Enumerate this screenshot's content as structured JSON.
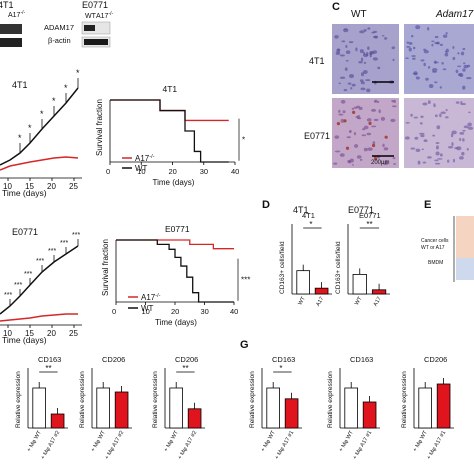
{
  "panel_top": {
    "cell_4t1": "4T1",
    "cell_e0771": "E0771",
    "wb_wt": "WT",
    "wb_a17": "A17",
    "wb_a17_sup": "-/-",
    "wb_adam17": "ADAM17",
    "wb_actin": "β-actin",
    "colors": {
      "wt": "#111111",
      "a17": "#d62728"
    }
  },
  "panel_c": {
    "letter": "C",
    "col_wt": "WT",
    "col_adam17": "Adam17",
    "row_4t1": "4T1",
    "row_e0771": "E0771",
    "scale": "200μm"
  },
  "growth_4t1": {
    "title": "4T1",
    "xlabel": "Time (days)",
    "xticks": [
      "10",
      "15",
      "20",
      "25"
    ],
    "stars": [
      "*",
      "*",
      "*",
      "*",
      "*",
      "*"
    ]
  },
  "growth_e0771": {
    "title": "E0771",
    "xlabel": "Time (days)",
    "xticks": [
      "10",
      "15",
      "20",
      "25"
    ],
    "stars": [
      "***",
      "***",
      "***",
      "***",
      "***",
      "***",
      "***",
      "***"
    ]
  },
  "chart_data": [
    {
      "type": "line",
      "title": "4T1",
      "xlabel": "Time (days)",
      "ylabel": "Survival fraction",
      "xlim": [
        0,
        40
      ],
      "ylim": [
        0,
        1
      ],
      "xticks": [
        "0",
        "10",
        "20",
        "30",
        "40"
      ],
      "series": [
        {
          "name": "A17",
          "color": "#d62728",
          "x": [
            0,
            16,
            16,
            24,
            24,
            38
          ],
          "y": [
            1,
            1,
            0.83,
            0.83,
            0.67,
            0.67
          ]
        },
        {
          "name": "WT",
          "color": "#111111",
          "x": [
            0,
            16,
            16,
            24,
            24,
            27,
            27,
            29,
            29,
            38
          ],
          "y": [
            1,
            1,
            0.83,
            0.83,
            0.5,
            0.5,
            0.17,
            0.17,
            0,
            0
          ]
        }
      ],
      "sig": "*"
    },
    {
      "type": "line",
      "title": "E0771",
      "xlabel": "Time (days)",
      "ylabel": "Survival fraction",
      "xlim": [
        0,
        40
      ],
      "ylim": [
        0,
        1
      ],
      "xticks": [
        "0",
        "10",
        "20",
        "30",
        "40"
      ],
      "series": [
        {
          "name": "A17",
          "color": "#d62728",
          "x": [
            0,
            25,
            25,
            33,
            33,
            40
          ],
          "y": [
            1,
            1,
            0.93,
            0.93,
            0.86,
            0.86
          ]
        },
        {
          "name": "WT",
          "color": "#111111",
          "x": [
            0,
            14,
            14,
            18,
            18,
            20,
            20,
            22,
            22,
            24,
            24,
            26,
            26,
            28,
            28,
            40
          ],
          "y": [
            1,
            1,
            0.93,
            0.93,
            0.85,
            0.85,
            0.72,
            0.72,
            0.58,
            0.58,
            0.4,
            0.4,
            0.15,
            0.15,
            0.0,
            0.0
          ]
        }
      ],
      "sig": "***"
    },
    {
      "type": "bar",
      "title": "4T1",
      "ylabel": "CD163+ cells/field",
      "categories": [
        "WT",
        "A17"
      ],
      "values": [
        20,
        5
      ],
      "ylim": [
        0,
        60
      ],
      "sig": "*"
    },
    {
      "type": "bar",
      "title": "E0771",
      "ylabel": "CD163+ cells/field",
      "categories": [
        "WT",
        "A17"
      ],
      "values": [
        14,
        3
      ],
      "ylim": [
        0,
        50
      ],
      "sig": "**"
    },
    {
      "type": "bar",
      "title": "CD163",
      "ylabel": "Relative expression",
      "categories": [
        "+ Mφ WT",
        "+ Mφ A17 #2"
      ],
      "values": [
        1.0,
        0.35
      ],
      "ylim": [
        0,
        1.5
      ],
      "sig": "**"
    },
    {
      "type": "bar",
      "title": "CD206",
      "ylabel": "Relative expression",
      "categories": [
        "+ Mφ WT",
        "+ Mφ A17 #2"
      ],
      "values": [
        1.0,
        0.9
      ],
      "ylim": [
        0,
        1.5
      ]
    },
    {
      "type": "bar",
      "title": "CD206",
      "ylabel": "Relative expression",
      "categories": [
        "+ Mφ WT",
        "+ Mφ A17 #2"
      ],
      "values": [
        1.0,
        0.48
      ],
      "ylim": [
        0,
        1.5
      ],
      "sig": "**"
    },
    {
      "type": "bar",
      "title": "CD163",
      "ylabel": "Relative expression",
      "categories": [
        "+ Mφ WT",
        "+ Mφ A17 #1"
      ],
      "values": [
        1.0,
        0.73
      ],
      "ylim": [
        0,
        1.5
      ],
      "sig": "*"
    },
    {
      "type": "bar",
      "title": "CD163",
      "ylabel": "Relative expression",
      "categories": [
        "+ Mφ WT",
        "+ Mφ A17 #1"
      ],
      "values": [
        1.0,
        0.65
      ],
      "ylim": [
        0,
        1.5
      ]
    },
    {
      "type": "bar",
      "title": "CD206",
      "ylabel": "Relative expression",
      "categories": [
        "+ Mφ WT",
        "+ Mφ A17 #1"
      ],
      "values": [
        1.0,
        1.1
      ],
      "ylim": [
        0,
        1.5
      ]
    }
  ],
  "surv_legend": {
    "a17": "A17",
    "sup": "-/-",
    "wt": "WT"
  },
  "panel_d": {
    "letter": "D",
    "title_4t1": "4T1",
    "title_e0771": "E0771"
  },
  "panel_e": {
    "letter": "E",
    "cancer_cells": "Cancer cells",
    "wt_or_a17": "WT or A17",
    "bmdm": "BMDM"
  },
  "panel_g": {
    "letter": "G"
  }
}
